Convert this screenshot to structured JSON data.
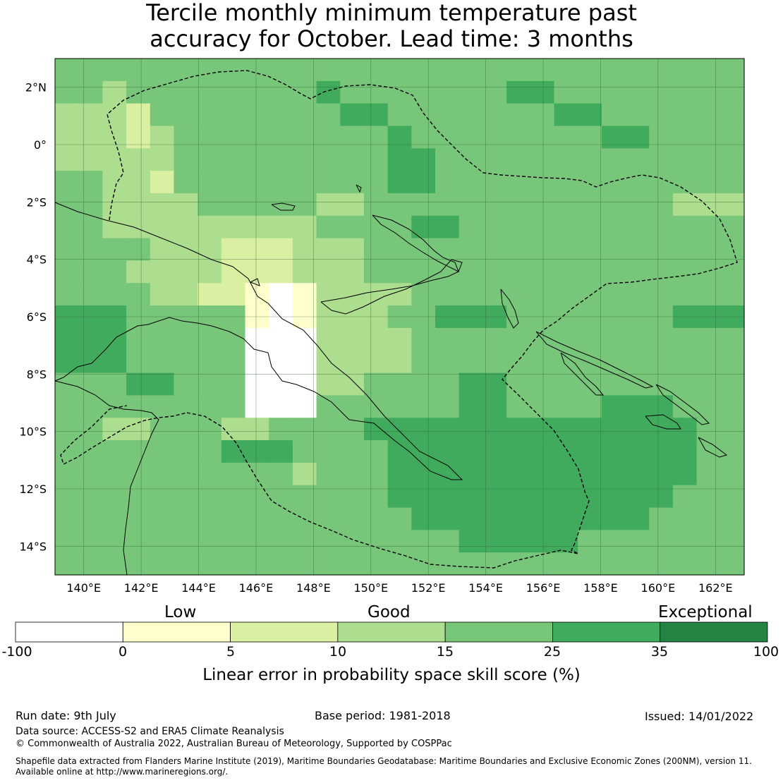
{
  "title": {
    "line1": "Tercile monthly minimum temperature past",
    "line2": "accuracy for October. Lead time: 3 months"
  },
  "map": {
    "lon_range": [
      139,
      163
    ],
    "lat_range": [
      -15,
      3
    ],
    "lat_ticks": [
      {
        "value": 2,
        "label": "2°N"
      },
      {
        "value": 0,
        "label": "0°"
      },
      {
        "value": -2,
        "label": "2°S"
      },
      {
        "value": -4,
        "label": "4°S"
      },
      {
        "value": -6,
        "label": "6°S"
      },
      {
        "value": -8,
        "label": "8°S"
      },
      {
        "value": -10,
        "label": "10°S"
      },
      {
        "value": -12,
        "label": "12°S"
      },
      {
        "value": -14,
        "label": "14°S"
      }
    ],
    "lon_ticks": [
      {
        "value": 140,
        "label": "140°E"
      },
      {
        "value": 142,
        "label": "142°E"
      },
      {
        "value": 144,
        "label": "144°E"
      },
      {
        "value": 146,
        "label": "146°E"
      },
      {
        "value": 148,
        "label": "148°E"
      },
      {
        "value": 150,
        "label": "150°E"
      },
      {
        "value": 152,
        "label": "152°E"
      },
      {
        "value": 154,
        "label": "154°E"
      },
      {
        "value": 156,
        "label": "156°E"
      },
      {
        "value": 158,
        "label": "158°E"
      },
      {
        "value": 160,
        "label": "160°E"
      },
      {
        "value": 162,
        "label": "162°E"
      }
    ],
    "grid_step_deg": 0.83,
    "skill_grid_rows_north_to_south": [
      "44444444444444444444444444444",
      "44344444444544444445544444444",
      "33324444444455444444455444444",
      "33323444444444544444444554444",
      "33333444444444554444444444444",
      "44332444444444554444444444444",
      "44333344444334444444444444333",
      "44333333333444455444444444444",
      "44443332223334444444444444444",
      "44433332223334444444444444444",
      "44443322101333344444444444444",
      "55544444101333445554444444555",
      "55544444000333344444444444444",
      "55544444000333344444444444444",
      "44455444000334444554444444444",
      "44444444000444444554444555444",
      "44334443344445555555555555544",
      "44444445554444555555555555544",
      "44444444443444555555555555544",
      "44444444444444555555555555444",
      "44444444444444455555555554444",
      "44444444444444444555554444444",
      "44444444444444444444444444444"
    ]
  },
  "colorbar": {
    "category_labels": [
      "Low",
      "Good",
      "Exceptional"
    ],
    "bins": [
      {
        "from": -100,
        "to": 0,
        "color": "#ffffff"
      },
      {
        "from": 0,
        "to": 5,
        "color": "#ffffcc"
      },
      {
        "from": 5,
        "to": 10,
        "color": "#d9f0a3"
      },
      {
        "from": 10,
        "to": 15,
        "color": "#addd8e"
      },
      {
        "from": 15,
        "to": 25,
        "color": "#78c679"
      },
      {
        "from": 25,
        "to": 35,
        "color": "#41ab5d"
      },
      {
        "from": 35,
        "to": 100,
        "color": "#238443"
      }
    ],
    "ticks": [
      "-100",
      "0",
      "5",
      "10",
      "15",
      "25",
      "35",
      "100"
    ],
    "title": "Linear error in probability space skill score (%)"
  },
  "footer": {
    "run_date": "Run date: 9th July",
    "base_period": "Base period: 1981-2018",
    "issued": "Issued: 14/01/2022",
    "data_source": "Data source: ACCESS-S2 and ERA5 Climate Reanalysis",
    "copyright": "© Commonwealth of Australia 2022, Australian Bureau of Meteorology, Supported by COSPPac",
    "shapefile_line1": "Shapefile data extracted from Flanders Marine Institute (2019), Maritime Boundaries Geodatabase: Maritime Boundaries and Exclusive Economic Zones (200NM), version 11.",
    "shapefile_line2": "Available online at http://www.marineregions.org/."
  }
}
